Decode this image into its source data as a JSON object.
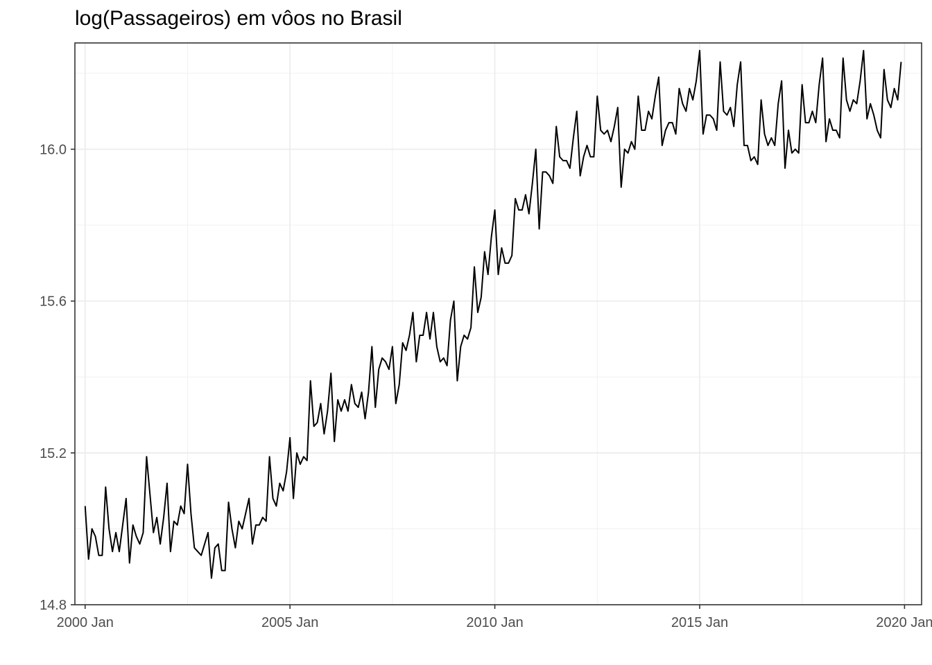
{
  "chart_data": {
    "type": "line",
    "title": "log(Passageiros) em vôos no Brasil",
    "xlabel": "",
    "ylabel": "",
    "x_ticks": [
      "2000 Jan",
      "2005 Jan",
      "2010 Jan",
      "2015 Jan",
      "2020 Jan"
    ],
    "y_ticks": [
      "14.8",
      "15.2",
      "15.6",
      "16.0"
    ],
    "xlim": [
      "1999-10",
      "2020-06"
    ],
    "ylim": [
      14.8,
      16.28
    ],
    "grid": true,
    "line_color": "#000000",
    "start": "2000-01",
    "frequency": "monthly",
    "series": [
      {
        "values": [
          15.06,
          14.92,
          15.0,
          14.98,
          14.93,
          14.93,
          15.11,
          15.0,
          14.94,
          14.99,
          14.94,
          15.01,
          15.08,
          14.91,
          15.01,
          14.98,
          14.96,
          14.99,
          15.19,
          15.09,
          14.99,
          15.03,
          14.96,
          15.03,
          15.12,
          14.94,
          15.02,
          15.01,
          15.06,
          15.04,
          15.17,
          15.04,
          14.95,
          14.94,
          14.93,
          14.96,
          14.99,
          14.87,
          14.95,
          14.96,
          14.89,
          14.89,
          15.07,
          15.0,
          14.95,
          15.02,
          15.0,
          15.04,
          15.08,
          14.96,
          15.01,
          15.01,
          15.03,
          15.02,
          15.19,
          15.08,
          15.06,
          15.12,
          15.1,
          15.15,
          15.24,
          15.08,
          15.2,
          15.17,
          15.19,
          15.18,
          15.39,
          15.27,
          15.28,
          15.33,
          15.25,
          15.31,
          15.41,
          15.23,
          15.34,
          15.31,
          15.34,
          15.31,
          15.38,
          15.33,
          15.32,
          15.36,
          15.29,
          15.36,
          15.48,
          15.32,
          15.42,
          15.45,
          15.44,
          15.42,
          15.48,
          15.33,
          15.38,
          15.49,
          15.47,
          15.51,
          15.57,
          15.44,
          15.51,
          15.51,
          15.57,
          15.5,
          15.57,
          15.48,
          15.44,
          15.45,
          15.43,
          15.55,
          15.6,
          15.39,
          15.48,
          15.51,
          15.5,
          15.53,
          15.69,
          15.57,
          15.61,
          15.73,
          15.67,
          15.77,
          15.84,
          15.67,
          15.74,
          15.7,
          15.7,
          15.72,
          15.87,
          15.84,
          15.84,
          15.88,
          15.83,
          15.91,
          16.0,
          15.79,
          15.94,
          15.94,
          15.93,
          15.91,
          16.06,
          15.98,
          15.97,
          15.97,
          15.95,
          16.03,
          16.1,
          15.93,
          15.98,
          16.01,
          15.98,
          15.98,
          16.14,
          16.05,
          16.04,
          16.05,
          16.02,
          16.06,
          16.11,
          15.9,
          16.0,
          15.99,
          16.02,
          16.0,
          16.14,
          16.05,
          16.05,
          16.1,
          16.08,
          16.14,
          16.19,
          16.01,
          16.05,
          16.07,
          16.07,
          16.04,
          16.16,
          16.12,
          16.1,
          16.16,
          16.13,
          16.18,
          16.26,
          16.04,
          16.09,
          16.09,
          16.08,
          16.05,
          16.23,
          16.1,
          16.09,
          16.11,
          16.06,
          16.17,
          16.23,
          16.01,
          16.01,
          15.97,
          15.98,
          15.96,
          16.13,
          16.04,
          16.01,
          16.03,
          16.01,
          16.12,
          16.18,
          15.95,
          16.05,
          15.99,
          16.0,
          15.99,
          16.17,
          16.07,
          16.07,
          16.1,
          16.07,
          16.17,
          16.24,
          16.02,
          16.08,
          16.05,
          16.05,
          16.03,
          16.24,
          16.13,
          16.1,
          16.13,
          16.12,
          16.18,
          16.26,
          16.08,
          16.12,
          16.09,
          16.05,
          16.03,
          16.21,
          16.13,
          16.11,
          16.16,
          16.13,
          16.23
        ]
      }
    ]
  }
}
